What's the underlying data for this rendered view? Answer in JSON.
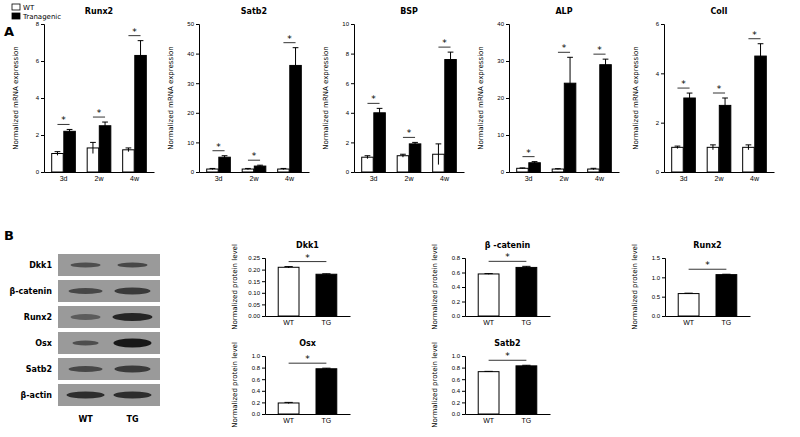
{
  "chart_data": [
    {
      "type": "bar",
      "title": "Runx2",
      "y_label": "Normalized mRNA expression",
      "categories": [
        "3d",
        "2w",
        "4w"
      ],
      "series": [
        {
          "name": "WT",
          "color": "#ffffff",
          "values": [
            1,
            1.3,
            1.2
          ],
          "errors": [
            0.1,
            0.3,
            0.1
          ]
        },
        {
          "name": "Tranagenic",
          "color": "#000000",
          "values": [
            2.2,
            2.5,
            6.3
          ],
          "errors": [
            0.1,
            0.2,
            0.8
          ]
        }
      ],
      "ylim": [
        0,
        8
      ],
      "yticks": [
        0,
        2,
        4,
        6,
        8
      ],
      "annotations": [
        "*",
        "*",
        "*"
      ],
      "legend": "top-left"
    },
    {
      "type": "bar",
      "title": "Satb2",
      "y_label": "Normalized mRNA expression",
      "categories": [
        "3d",
        "2w",
        "4w"
      ],
      "series": [
        {
          "color": "#ffffff",
          "values": [
            1,
            1,
            1
          ],
          "errors": [
            0.2,
            0.2,
            0.2
          ]
        },
        {
          "color": "#000000",
          "values": [
            5,
            2,
            36
          ],
          "errors": [
            0.5,
            0.3,
            6
          ]
        }
      ],
      "ylim": [
        0,
        50
      ],
      "yticks": [
        0,
        10,
        20,
        30,
        40,
        50
      ],
      "annotations": [
        "*",
        "*",
        "*"
      ]
    },
    {
      "type": "bar",
      "title": "BSP",
      "y_label": "Normalized mRNA expression",
      "categories": [
        "3d",
        "2w",
        "4w"
      ],
      "series": [
        {
          "color": "#ffffff",
          "values": [
            1,
            1.1,
            1.2
          ],
          "errors": [
            0.1,
            0.1,
            0.7
          ]
        },
        {
          "color": "#000000",
          "values": [
            4,
            1.9,
            7.6
          ],
          "errors": [
            0.3,
            0.1,
            0.5
          ]
        }
      ],
      "ylim": [
        0,
        10
      ],
      "yticks": [
        0,
        2,
        4,
        6,
        8,
        10
      ],
      "annotations": [
        "*",
        "*",
        "*"
      ]
    },
    {
      "type": "bar",
      "title": "ALP",
      "y_label": "Normalized mRNA expression",
      "categories": [
        "3d",
        "2w",
        "4w"
      ],
      "series": [
        {
          "color": "#ffffff",
          "values": [
            1,
            0.8,
            0.8
          ],
          "errors": [
            0.1,
            0.1,
            0.2
          ]
        },
        {
          "color": "#000000",
          "values": [
            2.5,
            24,
            29
          ],
          "errors": [
            0.3,
            7,
            1.5
          ]
        }
      ],
      "ylim": [
        0,
        40
      ],
      "yticks": [
        0,
        10,
        20,
        30,
        40
      ],
      "annotations": [
        "*",
        "*",
        "*"
      ]
    },
    {
      "type": "bar",
      "title": "ColI",
      "y_label": "Normalized mRNA expression",
      "categories": [
        "3d",
        "2w",
        "4w"
      ],
      "series": [
        {
          "color": "#ffffff",
          "values": [
            1,
            1,
            1
          ],
          "errors": [
            0.05,
            0.1,
            0.1
          ]
        },
        {
          "color": "#000000",
          "values": [
            3,
            2.7,
            4.7
          ],
          "errors": [
            0.2,
            0.3,
            0.5
          ]
        }
      ],
      "ylim": [
        0,
        6
      ],
      "yticks": [
        0,
        2,
        4,
        6
      ],
      "annotations": [
        "*",
        "*",
        "*"
      ]
    },
    {
      "type": "bar",
      "title": "Dkk1",
      "y_label": "Normalized protein level",
      "categories": [
        "WT",
        "TG"
      ],
      "values": [
        0.21,
        0.18
      ],
      "errors": [
        0.003,
        0.002
      ],
      "colors": [
        "#ffffff",
        "#000000"
      ],
      "ylim": [
        0,
        0.25
      ],
      "yticks": [
        {
          "value": 0,
          "label": "0.00"
        },
        {
          "value": 0.05,
          "label": "0.05"
        },
        {
          "value": 0.1,
          "label": "0.10"
        },
        {
          "value": 0.15,
          "label": "0.15"
        },
        {
          "value": 0.2,
          "label": "0.20"
        },
        {
          "value": 0.25,
          "label": "0.25"
        }
      ],
      "annotations": [
        "*"
      ]
    },
    {
      "type": "bar",
      "title": "β -catenin",
      "y_label": "Normalized protein level",
      "categories": [
        "WT",
        "TG"
      ],
      "values": [
        0.58,
        0.67
      ],
      "errors": [
        0.005,
        0.015
      ],
      "colors": [
        "#ffffff",
        "#000000"
      ],
      "ylim": [
        0,
        0.8
      ],
      "yticks": [
        {
          "value": 0,
          "label": "0.0"
        },
        {
          "value": 0.2,
          "label": "0.2"
        },
        {
          "value": 0.4,
          "label": "0.4"
        },
        {
          "value": 0.6,
          "label": "0.6"
        },
        {
          "value": 0.8,
          "label": "0.8"
        }
      ],
      "annotations": [
        "*"
      ]
    },
    {
      "type": "bar",
      "title": "Runx2",
      "y_label": "Normalized protein level",
      "categories": [
        "WT",
        "TG"
      ],
      "values": [
        0.58,
        1.07
      ],
      "errors": [
        0.01,
        0.01
      ],
      "colors": [
        "#ffffff",
        "#000000"
      ],
      "ylim": [
        0,
        1.5
      ],
      "yticks": [
        {
          "value": 0,
          "label": "0.0"
        },
        {
          "value": 0.5,
          "label": "0.5"
        },
        {
          "value": 1,
          "label": "1.0"
        },
        {
          "value": 1.5,
          "label": "1.5"
        }
      ],
      "annotations": [
        "*"
      ]
    },
    {
      "type": "bar",
      "title": "Osx",
      "y_label": "Normalized protein level",
      "categories": [
        "WT",
        "TG"
      ],
      "values": [
        0.19,
        0.78
      ],
      "errors": [
        0.01,
        0.01
      ],
      "colors": [
        "#ffffff",
        "#000000"
      ],
      "ylim": [
        0,
        1
      ],
      "yticks": [
        {
          "value": 0,
          "label": "0.0"
        },
        {
          "value": 0.2,
          "label": "0.2"
        },
        {
          "value": 0.4,
          "label": "0.4"
        },
        {
          "value": 0.6,
          "label": "0.6"
        },
        {
          "value": 0.8,
          "label": "0.8"
        },
        {
          "value": 1,
          "label": "1.0"
        }
      ],
      "annotations": [
        "*"
      ]
    },
    {
      "type": "bar",
      "title": "Satb2",
      "y_label": "Normalized protein level",
      "categories": [
        "WT",
        "TG"
      ],
      "values": [
        0.73,
        0.83
      ],
      "errors": [
        0.005,
        0.01
      ],
      "colors": [
        "#ffffff",
        "#000000"
      ],
      "ylim": [
        0,
        1
      ],
      "yticks": [
        {
          "value": 0,
          "label": "0.0"
        },
        {
          "value": 0.2,
          "label": "0.2"
        },
        {
          "value": 0.4,
          "label": "0.4"
        },
        {
          "value": 0.6,
          "label": "0.6"
        },
        {
          "value": 0.8,
          "label": "0.8"
        },
        {
          "value": 1,
          "label": "1.0"
        }
      ],
      "annotations": [
        "*"
      ]
    }
  ],
  "panels": [
    "A",
    "B"
  ],
  "blot": {
    "rows": [
      "Dkk1",
      "β-catenin",
      "Runx2",
      "Osx",
      "Satb2",
      "β-actin"
    ],
    "lanes": [
      "WT",
      "TG"
    ]
  }
}
